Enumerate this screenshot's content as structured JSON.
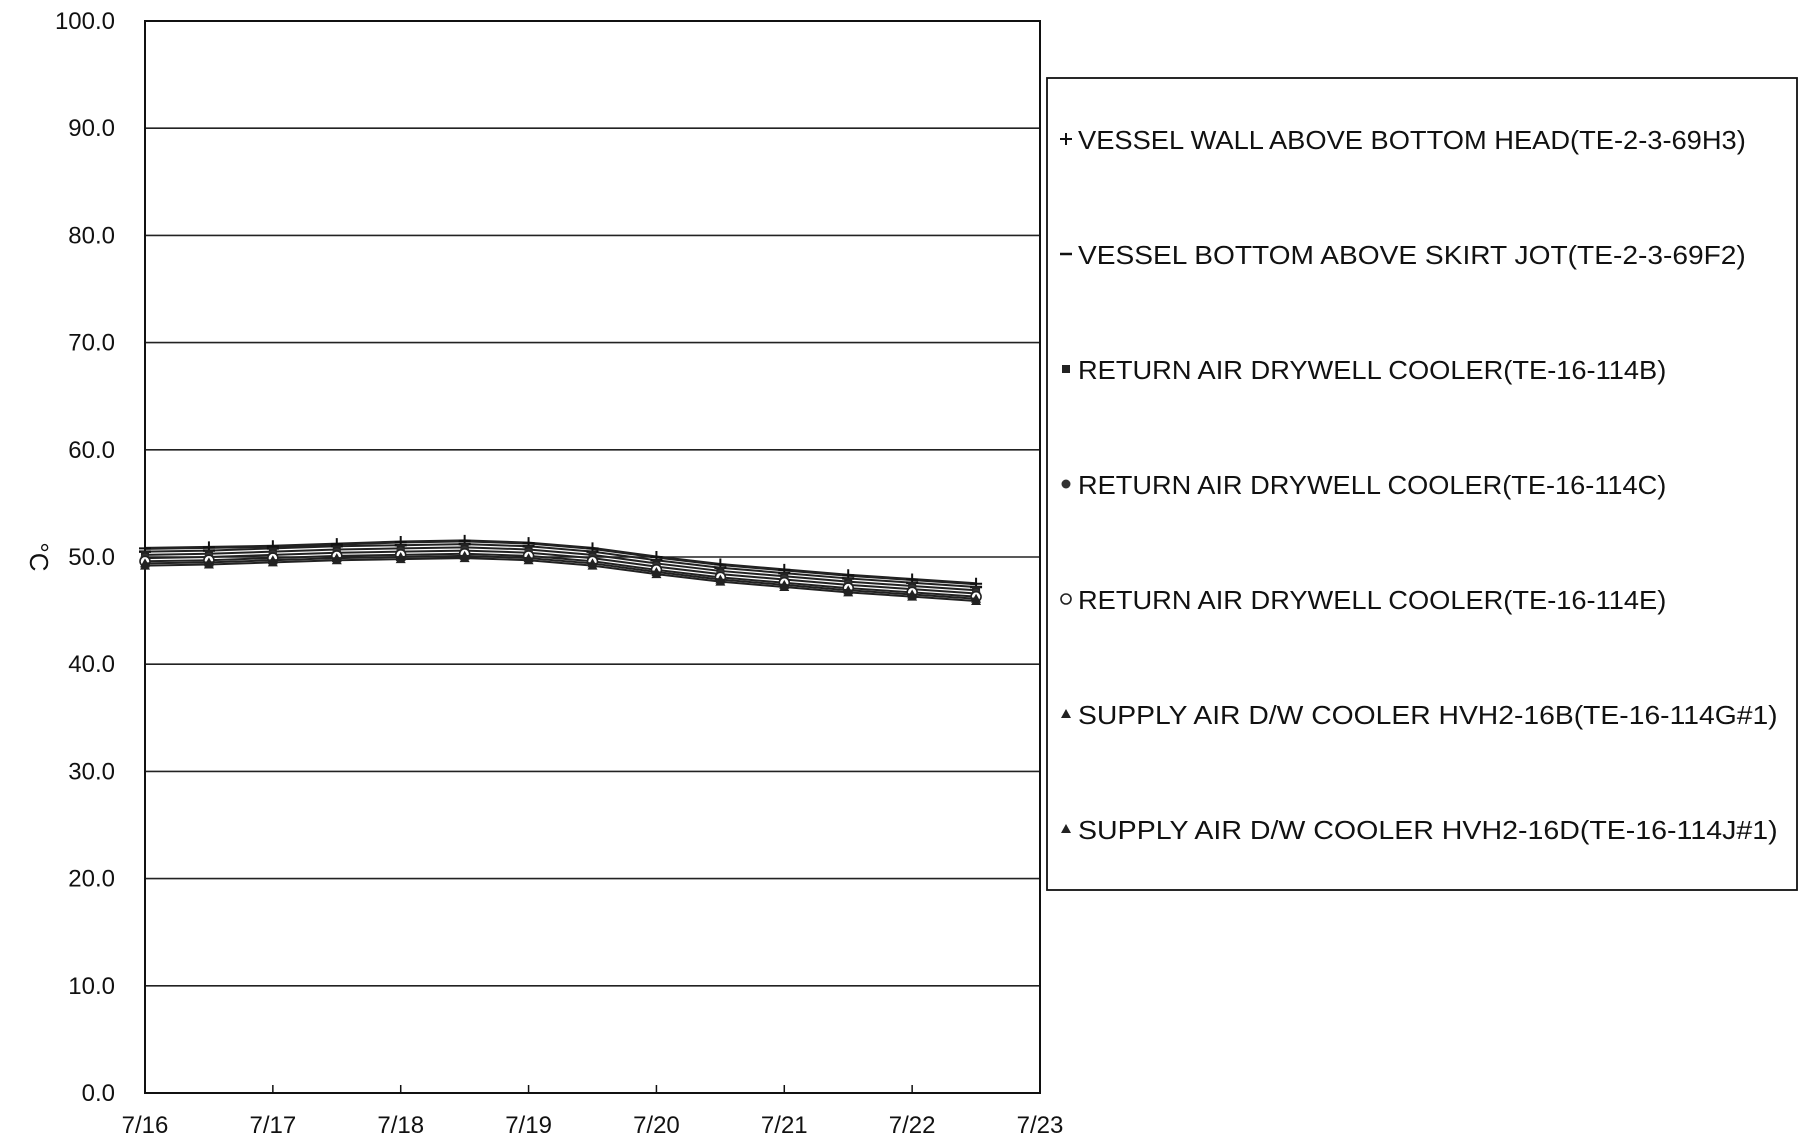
{
  "chart_data": {
    "type": "line",
    "ylabel": "°C",
    "ylim": [
      0,
      100
    ],
    "yticks": [
      "0.0",
      "10.0",
      "20.0",
      "30.0",
      "40.0",
      "50.0",
      "60.0",
      "70.0",
      "80.0",
      "90.0",
      "100.0"
    ],
    "xticks": [
      "7/16",
      "7/17",
      "7/18",
      "7/19",
      "7/20",
      "7/21",
      "7/22",
      "7/23"
    ],
    "xlim": [
      "7/16",
      "7/23"
    ],
    "grid": "horizontal",
    "legend_position": "right",
    "x": [
      "7/16 00:00",
      "7/16 12:00",
      "7/17 00:00",
      "7/17 12:00",
      "7/18 00:00",
      "7/18 12:00",
      "7/19 00:00",
      "7/19 12:00",
      "7/20 00:00",
      "7/20 12:00",
      "7/21 00:00",
      "7/21 12:00",
      "7/22 00:00",
      "7/22 12:00"
    ],
    "series": [
      {
        "name": "VESSEL WALL ABOVE BOTTOM HEAD(TE-2-3-69H3)",
        "marker": "+",
        "values": [
          50.8,
          50.9,
          51.0,
          51.2,
          51.4,
          51.5,
          51.3,
          50.8,
          50.0,
          49.3,
          48.8,
          48.3,
          47.9,
          47.5
        ]
      },
      {
        "name": "VESSEL BOTTOM ABOVE SKIRT JOT(TE-2-3-69F2)",
        "marker": "-",
        "values": [
          50.5,
          50.6,
          50.8,
          51.0,
          51.1,
          51.2,
          51.0,
          50.5,
          49.7,
          49.0,
          48.5,
          48.0,
          47.6,
          47.2
        ]
      },
      {
        "name": "RETURN AIR DRYWELL COOLER(TE-16-114B)",
        "marker": "square",
        "values": [
          50.2,
          50.3,
          50.5,
          50.7,
          50.8,
          50.9,
          50.7,
          50.2,
          49.4,
          48.7,
          48.2,
          47.7,
          47.3,
          46.9
        ]
      },
      {
        "name": "RETURN AIR DRYWELL COOLER(TE-16-114C)",
        "marker": "circle-filled",
        "values": [
          49.9,
          50.0,
          50.2,
          50.4,
          50.5,
          50.6,
          50.4,
          49.9,
          49.1,
          48.4,
          47.9,
          47.4,
          47.0,
          46.6
        ]
      },
      {
        "name": "RETURN AIR DRYWELL COOLER(TE-16-114E)",
        "marker": "circle-open",
        "values": [
          49.6,
          49.7,
          49.9,
          50.1,
          50.2,
          50.3,
          50.1,
          49.6,
          48.8,
          48.1,
          47.6,
          47.1,
          46.7,
          46.3
        ]
      },
      {
        "name": "SUPPLY AIR D/W COOLER HVH2-16B(TE-16-114G#1)",
        "marker": "triangle",
        "values": [
          49.4,
          49.5,
          49.7,
          49.9,
          50.0,
          50.1,
          49.9,
          49.4,
          48.6,
          47.9,
          47.4,
          46.9,
          46.5,
          46.1
        ]
      },
      {
        "name": "SUPPLY AIR D/W COOLER HVH2-16D(TE-16-114J#1)",
        "marker": "triangle",
        "values": [
          49.2,
          49.3,
          49.5,
          49.7,
          49.8,
          49.9,
          49.7,
          49.2,
          48.4,
          47.7,
          47.2,
          46.7,
          46.3,
          45.9
        ]
      }
    ]
  }
}
